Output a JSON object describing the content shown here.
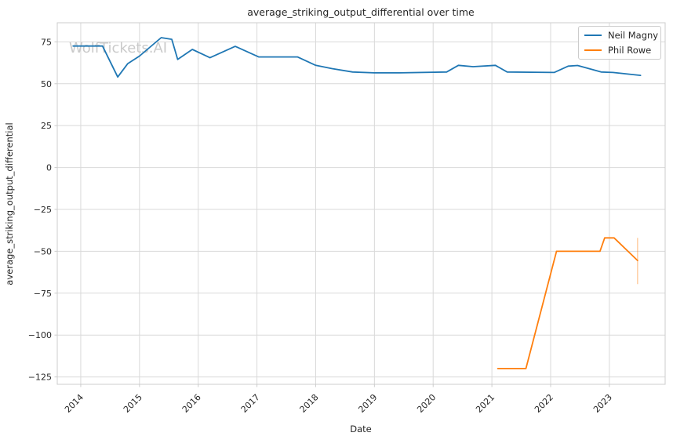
{
  "figure": {
    "watermark": "WolfTickets.AI"
  },
  "chart_data": {
    "type": "line",
    "title": "average_striking_output_differential over time",
    "xlabel": "Date",
    "ylabel": "average_striking_output_differential",
    "xlim": [
      2013.6,
      2023.95
    ],
    "ylim": [
      -129.4,
      86.4
    ],
    "grid": true,
    "legend_position": "upper right",
    "xticks": {
      "values": [
        2014,
        2015,
        2016,
        2017,
        2018,
        2019,
        2020,
        2021,
        2022,
        2023
      ],
      "labels": [
        "2014",
        "2015",
        "2016",
        "2017",
        "2018",
        "2019",
        "2020",
        "2021",
        "2022",
        "2023"
      ]
    },
    "yticks": {
      "values": [
        75,
        50,
        25,
        0,
        -25,
        -50,
        -75,
        -100,
        -125
      ],
      "labels": [
        "75",
        "50",
        "25",
        "0",
        "−25",
        "−50",
        "−75",
        "−100",
        "−125"
      ]
    },
    "series": [
      {
        "name": "Neil Magny",
        "color": "#1f77b4",
        "points": [
          [
            2013.87,
            72.5
          ],
          [
            2014.37,
            72.5
          ],
          [
            2014.63,
            54.0
          ],
          [
            2014.8,
            62.0
          ],
          [
            2015.0,
            66.5
          ],
          [
            2015.37,
            77.5
          ],
          [
            2015.55,
            76.5
          ],
          [
            2015.65,
            64.5
          ],
          [
            2015.9,
            70.5
          ],
          [
            2016.2,
            65.5
          ],
          [
            2016.63,
            72.3
          ],
          [
            2017.03,
            66.0
          ],
          [
            2017.69,
            66.0
          ],
          [
            2018.0,
            61.0
          ],
          [
            2018.28,
            59.0
          ],
          [
            2018.63,
            57.0
          ],
          [
            2019.0,
            56.5
          ],
          [
            2019.43,
            56.5
          ],
          [
            2020.23,
            57.0
          ],
          [
            2020.43,
            61.0
          ],
          [
            2020.68,
            60.2
          ],
          [
            2021.06,
            61.0
          ],
          [
            2021.26,
            57.0
          ],
          [
            2022.06,
            56.7
          ],
          [
            2022.3,
            60.5
          ],
          [
            2022.46,
            60.9
          ],
          [
            2022.86,
            57.0
          ],
          [
            2023.06,
            56.7
          ],
          [
            2023.53,
            55.0
          ]
        ]
      },
      {
        "name": "Phil Rowe",
        "color": "#ff7f0e",
        "points": [
          [
            2021.1,
            -120.0
          ],
          [
            2021.58,
            -120.0
          ],
          [
            2022.1,
            -50.0
          ],
          [
            2022.84,
            -50.0
          ],
          [
            2022.92,
            -42.0
          ],
          [
            2023.08,
            -42.0
          ],
          [
            2023.48,
            -55.5
          ]
        ],
        "error_bar": {
          "x": 2023.48,
          "from": -69.6,
          "to": -42.0
        }
      }
    ],
    "colors": {
      "grid": "#d9d9d9",
      "spine": "#cccccc",
      "text": "#262626",
      "watermark": "#c8c8c8"
    }
  },
  "legend": {
    "items": [
      {
        "label": "Neil Magny",
        "color": "#1f77b4"
      },
      {
        "label": "Phil Rowe",
        "color": "#ff7f0e"
      }
    ]
  }
}
